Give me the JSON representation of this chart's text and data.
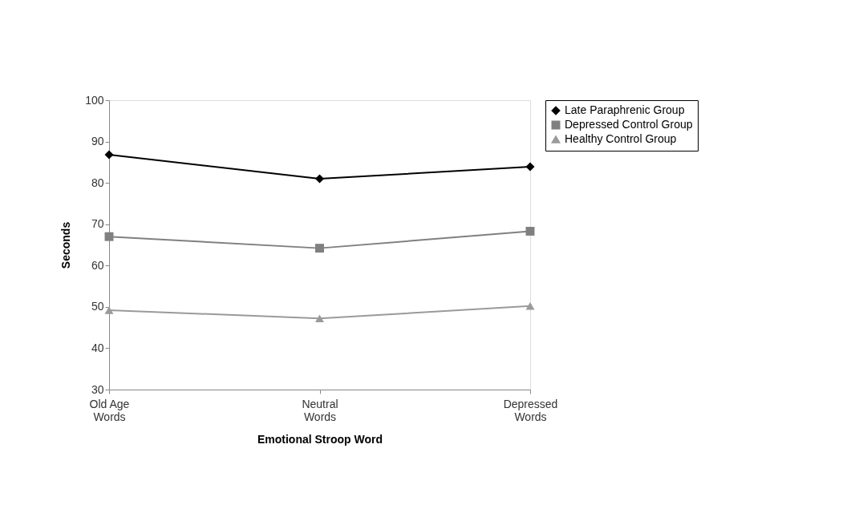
{
  "chart_data": {
    "type": "line",
    "xlabel": "Emotional Stroop Word",
    "ylabel": "Seconds",
    "categories": [
      "Old Age Words",
      "Neutral Words",
      "Depressed Words"
    ],
    "series": [
      {
        "name": "Late Paraphrenic Group",
        "color": "#000000",
        "marker": "diamond",
        "values": [
          86.8,
          81.0,
          83.9
        ]
      },
      {
        "name": "Depressed Control Group",
        "color": "#808080",
        "marker": "square",
        "values": [
          67.0,
          64.2,
          68.3
        ]
      },
      {
        "name": "Healthy Control Group",
        "color": "#9a9a9a",
        "marker": "triangle",
        "values": [
          49.2,
          47.2,
          50.2
        ]
      }
    ],
    "ylim": [
      30,
      100
    ],
    "yticks": [
      30,
      40,
      50,
      60,
      70,
      80,
      90,
      100
    ],
    "grid": false,
    "legend": "right",
    "line_style": "solid"
  }
}
